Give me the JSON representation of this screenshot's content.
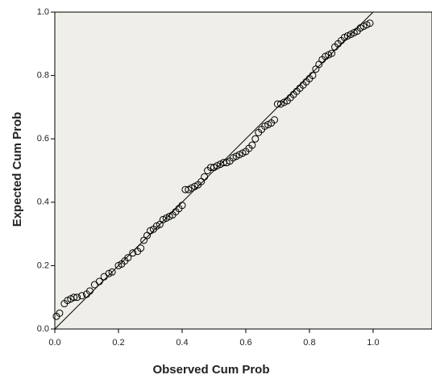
{
  "chart_data": {
    "type": "scatter",
    "x_label": "Observed Cum Prob",
    "y_label": "Expected Cum Prob",
    "x": [
      0.005,
      0.015,
      0.03,
      0.04,
      0.05,
      0.06,
      0.07,
      0.085,
      0.1,
      0.11,
      0.125,
      0.14,
      0.155,
      0.17,
      0.18,
      0.2,
      0.21,
      0.22,
      0.23,
      0.245,
      0.26,
      0.27,
      0.28,
      0.29,
      0.3,
      0.31,
      0.32,
      0.33,
      0.34,
      0.35,
      0.36,
      0.37,
      0.38,
      0.39,
      0.4,
      0.41,
      0.42,
      0.43,
      0.44,
      0.45,
      0.46,
      0.47,
      0.48,
      0.49,
      0.5,
      0.51,
      0.52,
      0.53,
      0.54,
      0.55,
      0.56,
      0.57,
      0.58,
      0.59,
      0.6,
      0.61,
      0.62,
      0.63,
      0.64,
      0.65,
      0.66,
      0.67,
      0.68,
      0.69,
      0.7,
      0.71,
      0.72,
      0.73,
      0.74,
      0.75,
      0.76,
      0.77,
      0.78,
      0.79,
      0.8,
      0.81,
      0.82,
      0.83,
      0.84,
      0.85,
      0.86,
      0.87,
      0.88,
      0.89,
      0.9,
      0.91,
      0.92,
      0.93,
      0.94,
      0.95,
      0.96,
      0.97,
      0.98,
      0.99
    ],
    "values": [
      0.04,
      0.05,
      0.08,
      0.09,
      0.095,
      0.1,
      0.1,
      0.105,
      0.11,
      0.12,
      0.14,
      0.15,
      0.165,
      0.175,
      0.18,
      0.2,
      0.205,
      0.215,
      0.225,
      0.24,
      0.245,
      0.255,
      0.28,
      0.295,
      0.31,
      0.315,
      0.325,
      0.33,
      0.345,
      0.35,
      0.355,
      0.36,
      0.37,
      0.38,
      0.39,
      0.44,
      0.44,
      0.445,
      0.45,
      0.455,
      0.465,
      0.48,
      0.5,
      0.51,
      0.51,
      0.515,
      0.52,
      0.525,
      0.525,
      0.53,
      0.54,
      0.545,
      0.55,
      0.555,
      0.56,
      0.57,
      0.58,
      0.6,
      0.62,
      0.63,
      0.64,
      0.645,
      0.65,
      0.66,
      0.71,
      0.71,
      0.715,
      0.72,
      0.73,
      0.74,
      0.75,
      0.76,
      0.77,
      0.78,
      0.79,
      0.8,
      0.82,
      0.835,
      0.85,
      0.86,
      0.865,
      0.87,
      0.89,
      0.9,
      0.91,
      0.92,
      0.925,
      0.93,
      0.935,
      0.94,
      0.95,
      0.955,
      0.96,
      0.965
    ],
    "color": "#000000",
    "reference_line": {
      "x": [
        0,
        1
      ],
      "y": [
        0,
        1
      ]
    },
    "xlim": [
      0,
      1.185
    ],
    "ylim": [
      0,
      1
    ],
    "xticks": [
      {
        "value": 0,
        "label": "0.0"
      },
      0.2,
      0.4,
      0.6,
      0.8,
      {
        "value": 1,
        "label": "1.0"
      }
    ],
    "yticks": [
      {
        "value": 0,
        "label": "0.0"
      },
      0.2,
      0.4,
      0.6,
      0.8,
      {
        "value": 1,
        "label": "1.0"
      }
    ]
  }
}
